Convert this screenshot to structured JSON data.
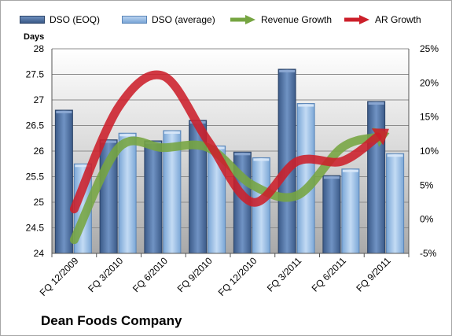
{
  "chart_data": {
    "type": "bar",
    "title": "Dean Foods Company",
    "y_left_label": "Days",
    "categories": [
      "FQ 12/2009",
      "FQ 3/2010",
      "FQ 6/2010",
      "FQ 9/2010",
      "FQ 12/2010",
      "FQ 3/2011",
      "FQ 6/2011",
      "FQ 9/2011"
    ],
    "series": [
      {
        "name": "DSO (EOQ)",
        "type": "bar",
        "axis": "left",
        "color": "#4a6b9a",
        "values": [
          26.8,
          26.22,
          26.2,
          26.6,
          25.98,
          27.6,
          25.52,
          26.97
        ]
      },
      {
        "name": "DSO (average)",
        "type": "bar",
        "axis": "left",
        "color": "#8db4e2",
        "values": [
          25.75,
          26.35,
          26.4,
          26.1,
          25.87,
          26.93,
          25.65,
          25.95
        ]
      },
      {
        "name": "Revenue Growth",
        "type": "line",
        "axis": "right",
        "color": "#76a541",
        "values": [
          -3.0,
          10.5,
          10.5,
          10.5,
          5.0,
          3.5,
          10.5,
          12.5
        ]
      },
      {
        "name": "AR Growth",
        "type": "line",
        "axis": "right",
        "color": "#cc1f2a",
        "values": [
          1.5,
          16.5,
          21.0,
          11.5,
          2.5,
          8.5,
          8.5,
          13.0
        ]
      }
    ],
    "y_left": {
      "min": 24,
      "max": 28,
      "ticks": [
        "24",
        "24.5",
        "25",
        "25.5",
        "26",
        "26.5",
        "27",
        "27.5",
        "28"
      ]
    },
    "y_right": {
      "min": -5,
      "max": 25,
      "ticks": [
        "-5%",
        "0%",
        "5%",
        "10%",
        "15%",
        "20%",
        "25%"
      ]
    },
    "grid": true,
    "legend_position": "top"
  }
}
